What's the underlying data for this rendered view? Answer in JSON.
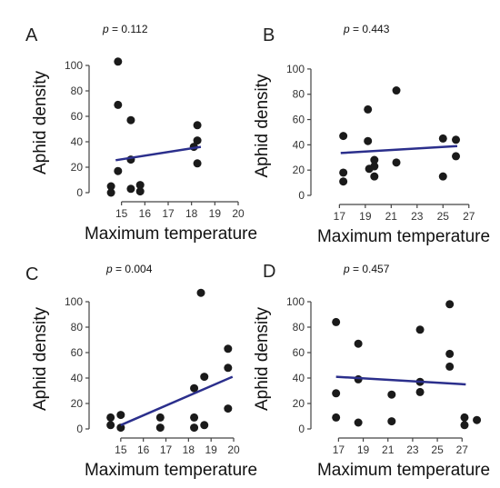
{
  "colors": {
    "points": "#1a1a1a",
    "fit_line": "#2b2f8c",
    "axes": "#444444"
  },
  "chart_data": [
    {
      "type": "scatter",
      "panel": "A",
      "p_label": "p",
      "p_text": " = 0.112",
      "xlabel": "Maximum temperature",
      "ylabel": "Aphid density",
      "xlim": [
        14.0,
        20.0
      ],
      "ylim": [
        0,
        110
      ],
      "xticks": [
        15,
        16,
        17,
        18,
        19,
        20
      ],
      "yticks": [
        0,
        20,
        40,
        60,
        80,
        100
      ],
      "points": [
        {
          "x": 14.55,
          "y": 5
        },
        {
          "x": 14.55,
          "y": 0
        },
        {
          "x": 14.85,
          "y": 103
        },
        {
          "x": 14.85,
          "y": 69
        },
        {
          "x": 14.85,
          "y": 17
        },
        {
          "x": 15.4,
          "y": 57
        },
        {
          "x": 15.4,
          "y": 26
        },
        {
          "x": 15.4,
          "y": 3
        },
        {
          "x": 15.8,
          "y": 6
        },
        {
          "x": 15.8,
          "y": 1
        },
        {
          "x": 18.1,
          "y": 36
        },
        {
          "x": 18.25,
          "y": 53
        },
        {
          "x": 18.25,
          "y": 41
        },
        {
          "x": 18.25,
          "y": 23
        }
      ],
      "fit": {
        "x": [
          14.75,
          18.4
        ],
        "y": [
          25.5,
          36
        ]
      }
    },
    {
      "type": "scatter",
      "panel": "B",
      "p_label": "p",
      "p_text": " = 0.443",
      "xlabel": "Maximum temperature",
      "ylabel": "Aphid density",
      "xlim": [
        15.5,
        28.0
      ],
      "ylim": [
        0,
        110
      ],
      "xticks": [
        17,
        19,
        21,
        23,
        25,
        27
      ],
      "yticks": [
        0,
        20,
        40,
        60,
        80,
        100
      ],
      "points": [
        {
          "x": 17.3,
          "y": 47
        },
        {
          "x": 17.3,
          "y": 18
        },
        {
          "x": 17.3,
          "y": 11
        },
        {
          "x": 19.2,
          "y": 68
        },
        {
          "x": 19.2,
          "y": 43
        },
        {
          "x": 19.3,
          "y": 21
        },
        {
          "x": 19.7,
          "y": 28
        },
        {
          "x": 19.7,
          "y": 23
        },
        {
          "x": 19.7,
          "y": 15
        },
        {
          "x": 21.4,
          "y": 83
        },
        {
          "x": 21.4,
          "y": 26
        },
        {
          "x": 25.0,
          "y": 45
        },
        {
          "x": 25.0,
          "y": 15
        },
        {
          "x": 26.0,
          "y": 44
        },
        {
          "x": 26.0,
          "y": 31
        }
      ],
      "fit": {
        "x": [
          17.1,
          26.1
        ],
        "y": [
          33.5,
          39
        ]
      }
    },
    {
      "type": "scatter",
      "panel": "C",
      "p_label": "p",
      "p_text": " = 0.004",
      "xlabel": "Maximum temperature",
      "ylabel": "Aphid density",
      "xlim": [
        14.0,
        20.2
      ],
      "ylim": [
        0,
        110
      ],
      "xticks": [
        15,
        16,
        17,
        18,
        19,
        20
      ],
      "yticks": [
        0,
        20,
        40,
        60,
        80,
        100
      ],
      "points": [
        {
          "x": 14.55,
          "y": 9
        },
        {
          "x": 14.55,
          "y": 3
        },
        {
          "x": 15.0,
          "y": 11
        },
        {
          "x": 15.0,
          "y": 1
        },
        {
          "x": 16.75,
          "y": 9
        },
        {
          "x": 16.75,
          "y": 1
        },
        {
          "x": 18.25,
          "y": 32
        },
        {
          "x": 18.25,
          "y": 9
        },
        {
          "x": 18.25,
          "y": 1
        },
        {
          "x": 18.55,
          "y": 107
        },
        {
          "x": 18.7,
          "y": 41
        },
        {
          "x": 18.7,
          "y": 3
        },
        {
          "x": 19.75,
          "y": 63
        },
        {
          "x": 19.75,
          "y": 48
        },
        {
          "x": 19.75,
          "y": 16
        }
      ],
      "fit": {
        "x": [
          15.0,
          19.95
        ],
        "y": [
          3,
          41
        ]
      }
    },
    {
      "type": "scatter",
      "panel": "D",
      "p_label": "p",
      "p_text": " = 0.457",
      "xlabel": "Maximum temperature",
      "ylabel": "Aphid density",
      "xlim": [
        15.5,
        28.6
      ],
      "ylim": [
        0,
        110
      ],
      "xticks": [
        17,
        19,
        21,
        23,
        25,
        27
      ],
      "yticks": [
        0,
        20,
        40,
        60,
        80,
        100
      ],
      "points": [
        {
          "x": 16.8,
          "y": 84
        },
        {
          "x": 16.8,
          "y": 28
        },
        {
          "x": 16.8,
          "y": 9
        },
        {
          "x": 18.6,
          "y": 67
        },
        {
          "x": 18.6,
          "y": 39
        },
        {
          "x": 18.6,
          "y": 5
        },
        {
          "x": 21.3,
          "y": 27
        },
        {
          "x": 21.3,
          "y": 6
        },
        {
          "x": 23.6,
          "y": 78
        },
        {
          "x": 23.6,
          "y": 37
        },
        {
          "x": 23.6,
          "y": 29
        },
        {
          "x": 26.0,
          "y": 98
        },
        {
          "x": 26.0,
          "y": 59
        },
        {
          "x": 26.0,
          "y": 49
        },
        {
          "x": 27.2,
          "y": 9
        },
        {
          "x": 27.2,
          "y": 3
        },
        {
          "x": 28.2,
          "y": 7
        }
      ],
      "fit": {
        "x": [
          16.8,
          27.3
        ],
        "y": [
          41,
          35
        ]
      }
    }
  ]
}
